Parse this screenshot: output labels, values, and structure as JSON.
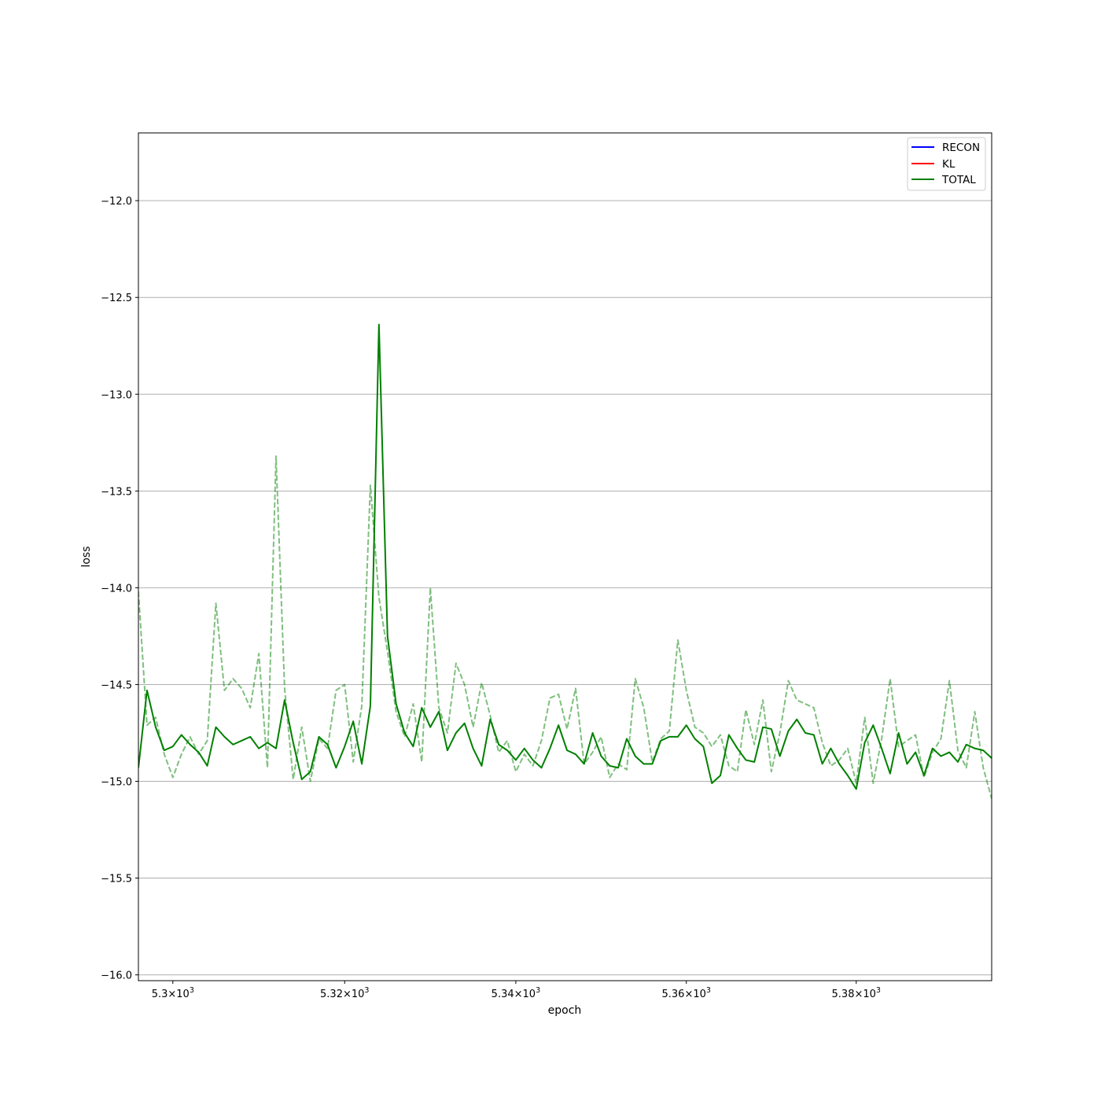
{
  "chart_data": {
    "type": "line",
    "xlabel": "epoch",
    "ylabel": "loss",
    "x_scale": "log",
    "xlim": [
      5296,
      5396
    ],
    "ylim": [
      -16.03,
      -11.65
    ],
    "grid": "y-major",
    "legend_position": "upper right",
    "x_tick_values": [
      5300,
      5320,
      5340,
      5360,
      5380
    ],
    "x_tick_labels": [
      {
        "base": "5.3",
        "exp": "3"
      },
      {
        "base": "5.32",
        "exp": "3"
      },
      {
        "base": "5.34",
        "exp": "3"
      },
      {
        "base": "5.36",
        "exp": "3"
      },
      {
        "base": "5.38",
        "exp": "3"
      }
    ],
    "y_tick_values": [
      -16.0,
      -15.5,
      -15.0,
      -14.5,
      -14.0,
      -13.5,
      -13.0,
      -12.5,
      -12.0
    ],
    "y_tick_labels": [
      "−16.0",
      "−15.5",
      "−15.0",
      "−14.5",
      "−14.0",
      "−13.5",
      "−13.0",
      "−12.5",
      "−12.0"
    ],
    "legend": [
      {
        "label": "RECON",
        "color": "#0000ff"
      },
      {
        "label": "KL",
        "color": "#ff0000"
      },
      {
        "label": "TOTAL",
        "color": "#008000"
      }
    ],
    "x_start": 5296,
    "series": [
      {
        "name": "TOTAL",
        "style": "solid",
        "color": "#008000",
        "values": [
          -14.93,
          -14.53,
          -14.72,
          -14.84,
          -14.82,
          -14.76,
          -14.81,
          -14.85,
          -14.92,
          -14.72,
          -14.77,
          -14.81,
          -14.79,
          -14.77,
          -14.83,
          -14.8,
          -14.83,
          -14.58,
          -14.8,
          -14.99,
          -14.95,
          -14.77,
          -14.81,
          -14.93,
          -14.82,
          -14.69,
          -14.91,
          -14.61,
          -12.64,
          -14.25,
          -14.6,
          -14.75,
          -14.82,
          -14.62,
          -14.72,
          -14.64,
          -14.84,
          -14.75,
          -14.7,
          -14.83,
          -14.92,
          -14.68,
          -14.81,
          -14.84,
          -14.89,
          -14.83,
          -14.89,
          -14.93,
          -14.83,
          -14.71,
          -14.84,
          -14.86,
          -14.91,
          -14.75,
          -14.87,
          -14.92,
          -14.93,
          -14.78,
          -14.87,
          -14.91,
          -14.91,
          -14.79,
          -14.77,
          -14.77,
          -14.71,
          -14.78,
          -14.82,
          -15.01,
          -14.97,
          -14.76,
          -14.83,
          -14.89,
          -14.9,
          -14.72,
          -14.73,
          -14.87,
          -14.74,
          -14.68,
          -14.75,
          -14.76,
          -14.91,
          -14.83,
          -14.91,
          -14.97,
          -15.04,
          -14.8,
          -14.71,
          -14.83,
          -14.96,
          -14.75,
          -14.91,
          -14.85,
          -14.97,
          -14.83,
          -14.87,
          -14.85,
          -14.9,
          -14.81,
          -14.83,
          -14.84,
          -14.88
        ]
      },
      {
        "name": "",
        "style": "dashed",
        "color": "#008000",
        "values": [
          -14.02,
          -14.71,
          -14.67,
          -14.86,
          -14.98,
          -14.86,
          -14.77,
          -14.86,
          -14.79,
          -14.08,
          -14.53,
          -14.47,
          -14.52,
          -14.62,
          -14.34,
          -14.93,
          -13.32,
          -14.52,
          -14.99,
          -14.72,
          -15.0,
          -14.78,
          -14.83,
          -14.53,
          -14.5,
          -14.9,
          -14.61,
          -13.47,
          -14.05,
          -14.33,
          -14.64,
          -14.77,
          -14.6,
          -14.9,
          -14.0,
          -14.62,
          -14.75,
          -14.39,
          -14.5,
          -14.72,
          -14.49,
          -14.66,
          -14.85,
          -14.79,
          -14.95,
          -14.86,
          -14.92,
          -14.79,
          -14.57,
          -14.55,
          -14.73,
          -14.52,
          -14.91,
          -14.85,
          -14.77,
          -14.98,
          -14.91,
          -14.94,
          -14.47,
          -14.62,
          -14.9,
          -14.78,
          -14.74,
          -14.27,
          -14.53,
          -14.72,
          -14.75,
          -14.82,
          -14.76,
          -14.92,
          -14.95,
          -14.63,
          -14.81,
          -14.58,
          -14.95,
          -14.75,
          -14.48,
          -14.58,
          -14.6,
          -14.62,
          -14.8,
          -14.92,
          -14.89,
          -14.83,
          -15.01,
          -14.67,
          -15.01,
          -14.78,
          -14.47,
          -14.82,
          -14.79,
          -14.76,
          -14.98,
          -14.85,
          -14.78,
          -14.48,
          -14.84,
          -14.93,
          -14.64,
          -14.93,
          -15.09
        ]
      }
    ]
  }
}
